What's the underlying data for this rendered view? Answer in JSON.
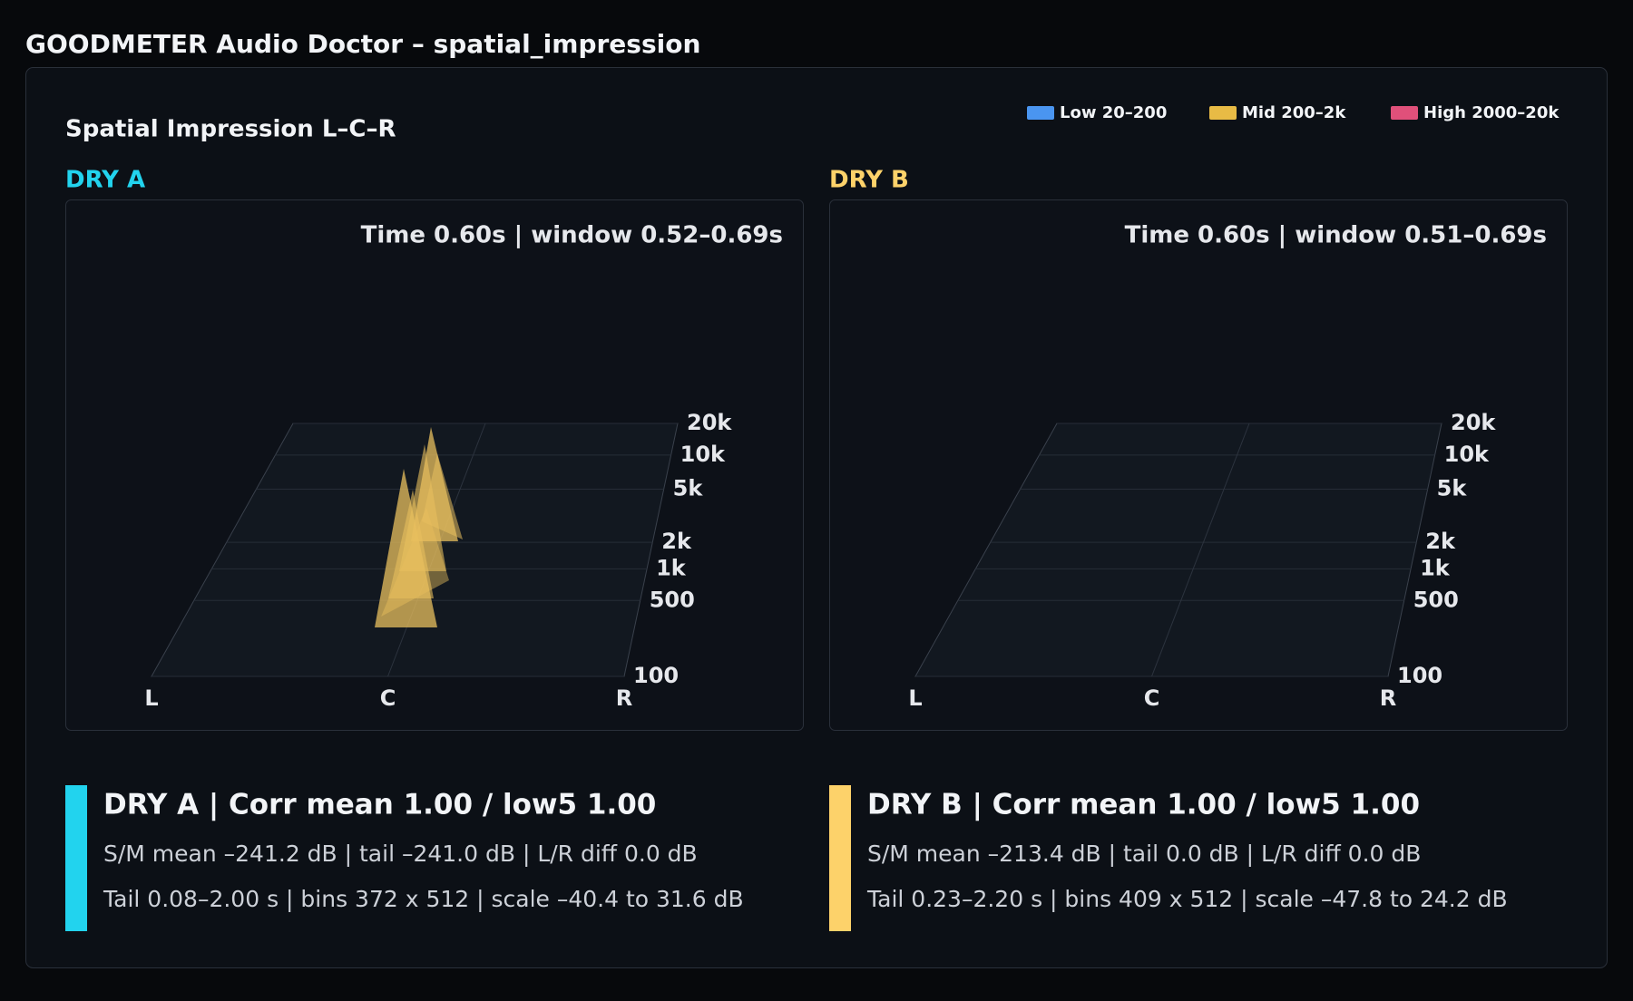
{
  "header": {
    "title": "GOODMETER Audio Doctor – spatial_impression"
  },
  "panel": {
    "title": "Spatial Impression L–C–R",
    "legend": [
      {
        "label": "Low 20–200",
        "color": "#4a95f0"
      },
      {
        "label": "Mid 200–2k",
        "color": "#e8bb45"
      },
      {
        "label": "High 2000–20k",
        "color": "#e0507a"
      }
    ]
  },
  "views": [
    {
      "name": "DRY A",
      "color": "#22d3ee",
      "time": "Time 0.60s | window 0.52–0.69s",
      "freq_labels": [
        "20k",
        "10k",
        "5k",
        "2k",
        "1k",
        "500",
        "100"
      ],
      "pan_labels": [
        "L",
        "C",
        "R"
      ],
      "summary": {
        "title": "DRY A | Corr mean 1.00 / low5 1.00",
        "line1": "S/M mean –241.2 dB | tail –241.0 dB | L/R diff 0.0 dB",
        "line2": "Tail 0.08–2.00 s | bins 372 x 512 | scale –40.4 to 31.6 dB"
      }
    },
    {
      "name": "DRY B",
      "color": "#fdd26a",
      "time": "Time 0.60s | window 0.51–0.69s",
      "freq_labels": [
        "20k",
        "10k",
        "5k",
        "2k",
        "1k",
        "500",
        "100"
      ],
      "pan_labels": [
        "L",
        "C",
        "R"
      ],
      "summary": {
        "title": "DRY B | Corr mean 1.00 / low5 1.00",
        "line1": "S/M mean –213.4 dB | tail 0.0 dB | L/R diff 0.0 dB",
        "line2": "Tail 0.23–2.20 s | bins 409 x 512 | scale –47.8 to 24.2 dB"
      }
    }
  ]
}
